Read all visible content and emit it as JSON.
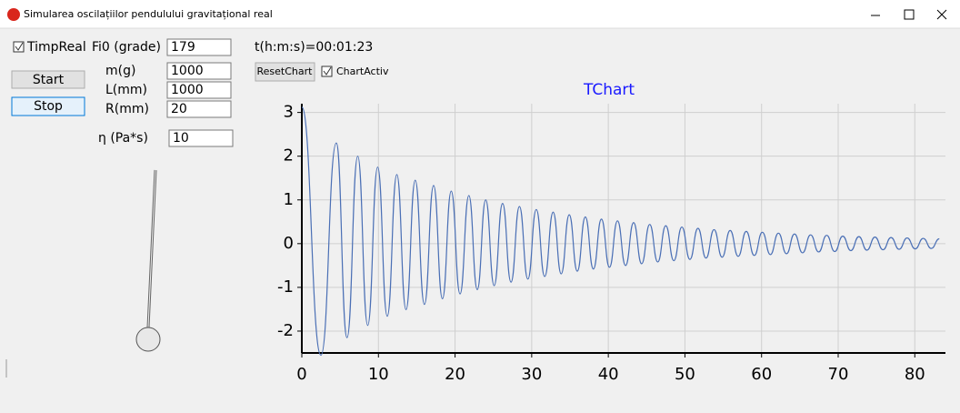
{
  "window": {
    "title": "Simularea oscilațiilor  pendulului  gravitațional real"
  },
  "controls": {
    "timp_real": "TimpReal",
    "start": "Start",
    "stop": "Stop",
    "fields": [
      {
        "label": "Fi0 (grade)",
        "value": "179"
      },
      {
        "label": "m(g)",
        "value": "1000"
      },
      {
        "label": "L(mm)",
        "value": "1000"
      },
      {
        "label": "R(mm)",
        "value": "20"
      },
      {
        "label": "η (Pa*s)",
        "value": "10"
      }
    ],
    "time": "t(h:m:s)=00:01:23",
    "reset_chart": "ResetChart",
    "chart_activ": "ChartActiv"
  },
  "chart_data": {
    "type": "line",
    "title": "TChart",
    "xlim": [
      0,
      84
    ],
    "ylim": [
      -2.5,
      3.2
    ],
    "xticks": [
      0,
      10,
      20,
      30,
      40,
      50,
      60,
      70,
      80
    ],
    "yticks": [
      -2,
      -1,
      0,
      1,
      2,
      3
    ],
    "grid": true,
    "series": [
      {
        "color": "#4a6fb5",
        "x": [
          0,
          2.5,
          4.5,
          5.9,
          7.3,
          8.6,
          9.9,
          11.15,
          12.4,
          13.6,
          14.8,
          16.0,
          17.2,
          18.35,
          19.5,
          20.65,
          21.8,
          22.9,
          24.0,
          25.1,
          26.2,
          27.3,
          28.4,
          29.5,
          30.6,
          31.7,
          32.8,
          33.85,
          34.9,
          35.95,
          37.0,
          38.05,
          39.1,
          40.15,
          41.2,
          42.25,
          43.3,
          44.35,
          45.4,
          46.45,
          47.5,
          48.55,
          49.6,
          50.65,
          51.7,
          52.75,
          53.8,
          54.85,
          55.9,
          56.95,
          58.0,
          59.05,
          60.1,
          61.15,
          62.2,
          63.25,
          64.3,
          65.35,
          66.4,
          67.45,
          68.5,
          69.55,
          70.6,
          71.65,
          72.7,
          73.75,
          74.8,
          75.85,
          76.9,
          77.95,
          79.0,
          80.05,
          81.1,
          82.15,
          83.2
        ],
        "values": [
          3.12,
          -2.55,
          2.3,
          -2.15,
          2.0,
          -1.87,
          1.75,
          -1.66,
          1.58,
          -1.51,
          1.45,
          -1.39,
          1.33,
          -1.26,
          1.2,
          -1.15,
          1.1,
          -1.05,
          1.0,
          -0.96,
          0.92,
          -0.88,
          0.85,
          -0.81,
          0.78,
          -0.75,
          0.72,
          -0.69,
          0.66,
          -0.63,
          0.61,
          -0.58,
          0.56,
          -0.54,
          0.52,
          -0.5,
          0.48,
          -0.46,
          0.44,
          -0.42,
          0.41,
          -0.39,
          0.38,
          -0.36,
          0.35,
          -0.33,
          0.32,
          -0.31,
          0.3,
          -0.29,
          0.28,
          -0.27,
          0.26,
          -0.25,
          0.24,
          -0.23,
          0.22,
          -0.21,
          0.2,
          -0.19,
          0.19,
          -0.18,
          0.17,
          -0.16,
          0.16,
          -0.15,
          0.15,
          -0.14,
          0.14,
          -0.13,
          0.13,
          -0.12,
          0.12,
          -0.11,
          0.11
        ]
      }
    ]
  }
}
